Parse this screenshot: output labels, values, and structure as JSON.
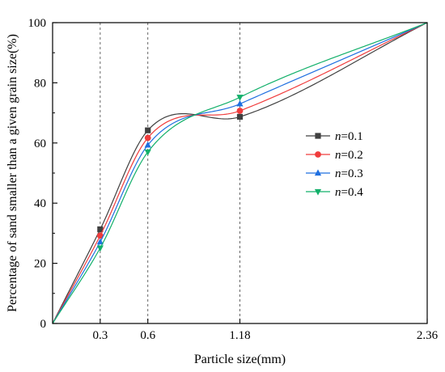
{
  "chart_data": {
    "type": "line",
    "xlabel": "Particle size(mm)",
    "ylabel": "Percentage of sand smaller than a given grain size(%)",
    "xlim": [
      0,
      2.36
    ],
    "ylim": [
      0,
      100
    ],
    "x_ticks": [
      0.3,
      0.6,
      1.18,
      2.36
    ],
    "x_tick_labels": [
      "0.3",
      "0.6",
      "1.18",
      "2.36"
    ],
    "y_ticks": [
      0,
      20,
      40,
      60,
      80,
      100
    ],
    "y_tick_labels": [
      "0",
      "20",
      "40",
      "60",
      "80",
      "100"
    ],
    "reference_lines_x": [
      0.3,
      0.6,
      1.18
    ],
    "grid": false,
    "legend_position": "right-middle",
    "series": [
      {
        "name": "n=0.1",
        "legend_symbol": "n",
        "legend_value": "=0.1",
        "color": "#404040",
        "marker": "square",
        "x": [
          0,
          0.3,
          0.6,
          1.18,
          2.36
        ],
        "y": [
          0,
          31.3,
          64.2,
          68.7,
          100
        ]
      },
      {
        "name": "n=0.2",
        "legend_symbol": "n",
        "legend_value": "=0.2",
        "color": "#f03c3c",
        "marker": "circle",
        "x": [
          0,
          0.3,
          0.6,
          1.18,
          2.36
        ],
        "y": [
          0,
          29.2,
          61.7,
          70.7,
          100
        ]
      },
      {
        "name": "n=0.3",
        "legend_symbol": "n",
        "legend_value": "=0.3",
        "color": "#1f6fe0",
        "marker": "triangle-up",
        "x": [
          0,
          0.3,
          0.6,
          1.18,
          2.36
        ],
        "y": [
          0,
          27.1,
          59.3,
          73.0,
          100
        ]
      },
      {
        "name": "n=0.4",
        "legend_symbol": "n",
        "legend_value": "=0.4",
        "color": "#12b06a",
        "marker": "triangle-down",
        "x": [
          0,
          0.3,
          0.6,
          1.18,
          2.36
        ],
        "y": [
          0,
          25.1,
          57.0,
          75.2,
          100
        ]
      }
    ]
  }
}
